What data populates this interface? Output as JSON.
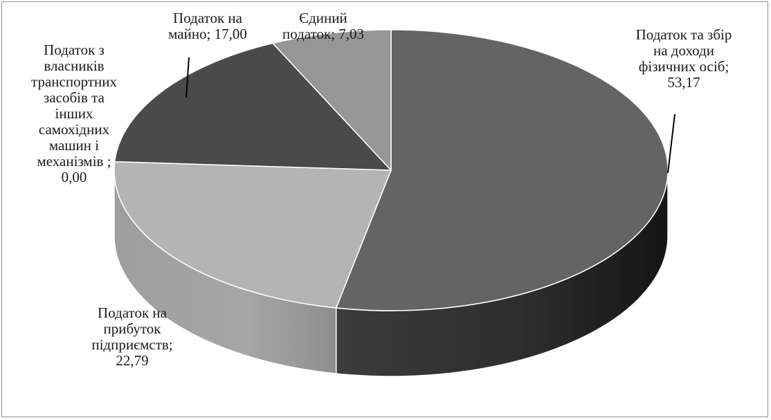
{
  "chart_data": {
    "type": "pie",
    "three_d": true,
    "title": "",
    "start_angle_deg": 0,
    "direction": "clockwise",
    "legend": "none",
    "slices": [
      {
        "name": "Податок та збір на доходи фізичних осіб",
        "value": 53.17,
        "label_value": "53,17",
        "color": "#646464"
      },
      {
        "name": "Податок на прибуток підприємств",
        "value": 22.79,
        "label_value": "22,79",
        "color": "#b4b4b4"
      },
      {
        "name": "Податок з власників транспортних засобів та інших самохідних машин і механізмів",
        "value": 0.0,
        "label_value": "0,00",
        "color": "#8a8a8a"
      },
      {
        "name": "Податок на майно",
        "value": 17.0,
        "label_value": "17,00",
        "color": "#4a4a4a"
      },
      {
        "name": "Єдиний податок",
        "value": 7.03,
        "label_value": "7,03",
        "color": "#969696"
      }
    ],
    "labels": {
      "pdfo": "Податок та збір\nна доходи\nфізичних осіб;\n53,17",
      "profit": "Податок на\nприбуток\nпідприємств;\n22,79",
      "transport": "Податок з\nвласників\nтранспортних\nзасобів та\nінших\nсамохідних\nмашин і\nмеханізмів ;\n0,00",
      "property": "Податок на\nмайно; 17,00",
      "single": "Єдиний\nподаток; 7,03"
    }
  }
}
